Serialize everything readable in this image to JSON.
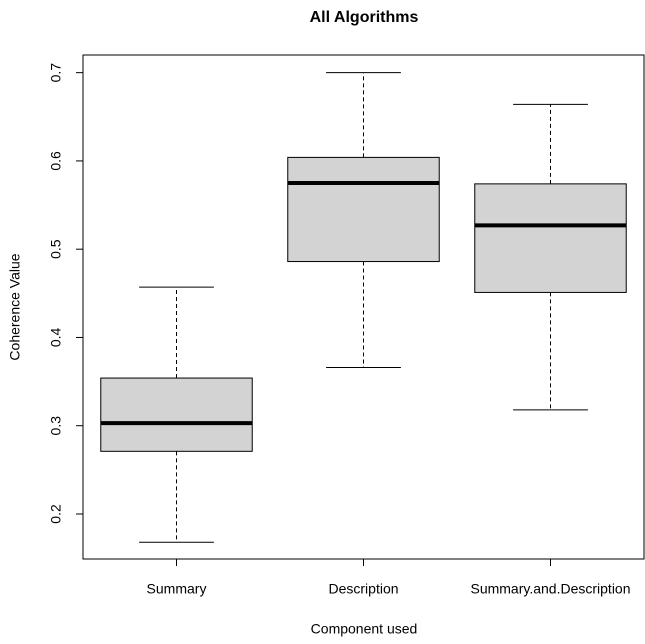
{
  "chart_data": {
    "type": "box",
    "title": "All Algorithms",
    "x_label": "Component used",
    "y_label": "Coherence Value",
    "categories": [
      "Summary",
      "Description",
      "Summary.and.Description"
    ],
    "min": [
      0.168,
      0.366,
      0.318
    ],
    "q1": [
      0.271,
      0.486,
      0.451
    ],
    "median": [
      0.303,
      0.575,
      0.527
    ],
    "q3": [
      0.354,
      0.604,
      0.574
    ],
    "max": [
      0.457,
      0.7,
      0.664
    ],
    "color": "#d3d3d3",
    "ylim": [
      0.149,
      0.72
    ],
    "yticks": [
      0.2,
      0.3,
      0.4,
      0.5,
      0.6,
      0.7
    ]
  }
}
